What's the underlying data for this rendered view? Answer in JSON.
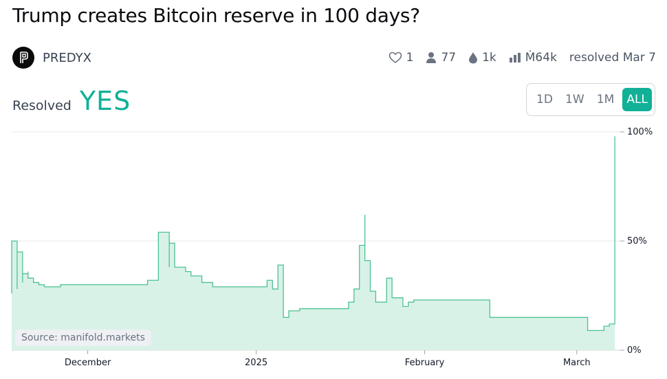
{
  "title": "Trump creates Bitcoin reserve in 100 days?",
  "creator": {
    "name": "PREDYX"
  },
  "stats": {
    "likes": "1",
    "traders": "77",
    "liquidity": "1k",
    "volume": "Ṁ64k",
    "resolved": "resolved Mar 7"
  },
  "resolution": {
    "label": "Resolved",
    "value": "YES"
  },
  "time_ranges": [
    "1D",
    "1W",
    "1M",
    "ALL"
  ],
  "active_range": "ALL",
  "source": "Source: manifold.markets",
  "colors": {
    "accent": "#11b097",
    "line": "#4cc194",
    "fill": "#d9f2e7",
    "grid": "#e5e7eb"
  },
  "icons": [
    "heart-icon",
    "user-icon",
    "droplet-icon",
    "bar-chart-icon"
  ],
  "chart_data": {
    "type": "area",
    "title": "",
    "xlabel": "",
    "ylabel": "",
    "ylim": [
      0,
      100
    ],
    "y_ticks": [
      "0%",
      "50%",
      "100%"
    ],
    "x_range": [
      "2024-11-17",
      "2025-03-09"
    ],
    "x_ticks": [
      {
        "date": "2024-12-01",
        "label": "December"
      },
      {
        "date": "2025-01-01",
        "label": "2025"
      },
      {
        "date": "2025-02-01",
        "label": "February"
      },
      {
        "date": "2025-03-01",
        "label": "March"
      }
    ],
    "grid": true,
    "series": [
      {
        "x": [
          "2024-11-17",
          "2024-11-17",
          "2024-11-18",
          "2024-11-18",
          "2024-11-19",
          "2024-11-19",
          "2024-11-20",
          "2024-11-20",
          "2024-11-21",
          "2024-11-22",
          "2024-11-23",
          "2024-11-26",
          "2024-11-30",
          "2024-12-04",
          "2024-12-12",
          "2024-12-14",
          "2024-12-16",
          "2024-12-16",
          "2024-12-17",
          "2024-12-17",
          "2024-12-19",
          "2024-12-20",
          "2024-12-22",
          "2024-12-24",
          "2024-12-27",
          "2025-01-03",
          "2025-01-04",
          "2025-01-05",
          "2025-01-06",
          "2025-01-06",
          "2025-01-07",
          "2025-01-08",
          "2025-01-09",
          "2025-01-10",
          "2025-01-13",
          "2025-01-18",
          "2025-01-19",
          "2025-01-20",
          "2025-01-20",
          "2025-01-21",
          "2025-01-21",
          "2025-01-22",
          "2025-01-22",
          "2025-01-23",
          "2025-01-25",
          "2025-01-26",
          "2025-01-28",
          "2025-01-29",
          "2025-01-30",
          "2025-02-02",
          "2025-02-13",
          "2025-03-03",
          "2025-03-04",
          "2025-03-05",
          "2025-03-06",
          "2025-03-07",
          "2025-03-08"
        ],
        "y": [
          26,
          50,
          28,
          45,
          31,
          35,
          36,
          33,
          31,
          30,
          29,
          30,
          30,
          30,
          32,
          54,
          38,
          49,
          42,
          38,
          36,
          34,
          31,
          29,
          29,
          32,
          28,
          39,
          34,
          15,
          18,
          18,
          19,
          19,
          19,
          22,
          28,
          38,
          48,
          62,
          41,
          36,
          27,
          22,
          33,
          24,
          20,
          22,
          23,
          23,
          15,
          9,
          9,
          9,
          11,
          12,
          98
        ]
      }
    ]
  }
}
